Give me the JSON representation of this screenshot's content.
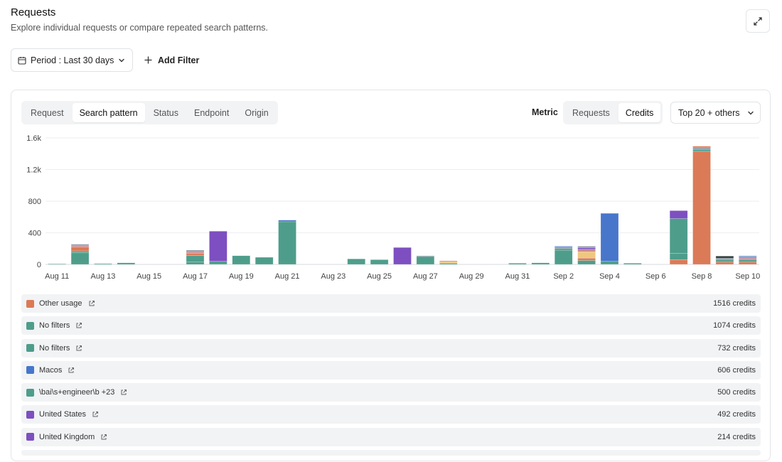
{
  "header": {
    "title": "Requests",
    "subtitle": "Explore individual requests or compare repeated search patterns."
  },
  "filters": {
    "period_label": "Period : Last 30 days",
    "add_filter_label": "Add Filter"
  },
  "tabs": [
    {
      "label": "Request",
      "active": false
    },
    {
      "label": "Search pattern",
      "active": true
    },
    {
      "label": "Status",
      "active": false
    },
    {
      "label": "Endpoint",
      "active": false
    },
    {
      "label": "Origin",
      "active": false
    }
  ],
  "metric": {
    "label": "Metric",
    "options": [
      {
        "label": "Requests",
        "active": false
      },
      {
        "label": "Credits",
        "active": true
      }
    ]
  },
  "top_select": {
    "value": "Top 20 + others"
  },
  "colors": {
    "orange": "#db7a57",
    "teal": "#4e9d8b",
    "blue": "#4776cb",
    "purple": "#7d4fc0",
    "yellow": "#efc77e",
    "gray": "#8d96a2",
    "pink": "#c98a8f",
    "dark": "#2b3a36",
    "lightblue": "#8aa6d6"
  },
  "chart_data": {
    "type": "bar",
    "stacked": true,
    "ylim": [
      0,
      1600
    ],
    "yticks": [
      "0",
      "400",
      "800",
      "1.2k",
      "1.6k"
    ],
    "ytick_values": [
      0,
      400,
      800,
      1200,
      1600
    ],
    "grid": true,
    "categories": [
      "Aug 11",
      "Aug 12",
      "Aug 13",
      "Aug 14",
      "Aug 15",
      "Aug 16",
      "Aug 17",
      "Aug 18",
      "Aug 19",
      "Aug 20",
      "Aug 21",
      "Aug 22",
      "Aug 23",
      "Aug 24",
      "Aug 25",
      "Aug 26",
      "Aug 27",
      "Aug 28",
      "Aug 29",
      "Aug 30",
      "Aug 31",
      "Sep 1",
      "Sep 2",
      "Sep 3",
      "Sep 4",
      "Sep 5",
      "Sep 6",
      "Sep 7",
      "Sep 8",
      "Sep 9",
      "Sep 10"
    ],
    "tick_labels": [
      "Aug 11",
      "Aug 13",
      "Aug 15",
      "Aug 17",
      "Aug 19",
      "Aug 21",
      "Aug 23",
      "Aug 25",
      "Aug 27",
      "Aug 29",
      "Aug 31",
      "Sep 2",
      "Sep 4",
      "Sep 6",
      "Sep 8",
      "Sep 10"
    ],
    "bars": [
      [
        {
          "v": 8,
          "c": "teal"
        }
      ],
      [
        {
          "v": 150,
          "c": "teal"
        },
        {
          "v": 20,
          "c": "teal"
        },
        {
          "v": 50,
          "c": "orange"
        },
        {
          "v": 20,
          "c": "pink"
        },
        {
          "v": 15,
          "c": "gray"
        }
      ],
      [
        {
          "v": 10,
          "c": "teal"
        }
      ],
      [
        {
          "v": 20,
          "c": "teal"
        }
      ],
      [],
      [],
      [
        {
          "v": 30,
          "c": "teal"
        },
        {
          "v": 80,
          "c": "teal"
        },
        {
          "v": 30,
          "c": "orange"
        },
        {
          "v": 20,
          "c": "pink"
        },
        {
          "v": 20,
          "c": "gray"
        }
      ],
      [
        {
          "v": 40,
          "c": "teal"
        },
        {
          "v": 380,
          "c": "purple"
        }
      ],
      [
        {
          "v": 110,
          "c": "teal"
        }
      ],
      [
        {
          "v": 90,
          "c": "teal"
        }
      ],
      [
        {
          "v": 540,
          "c": "teal"
        },
        {
          "v": 20,
          "c": "blue"
        }
      ],
      [],
      [],
      [
        {
          "v": 70,
          "c": "teal"
        }
      ],
      [
        {
          "v": 60,
          "c": "teal"
        }
      ],
      [
        {
          "v": 214,
          "c": "purple"
        }
      ],
      [
        {
          "v": 100,
          "c": "teal"
        },
        {
          "v": 10,
          "c": "gray"
        }
      ],
      [
        {
          "v": 15,
          "c": "teal"
        },
        {
          "v": 20,
          "c": "yellow"
        },
        {
          "v": 10,
          "c": "orange"
        }
      ],
      [],
      [],
      [
        {
          "v": 15,
          "c": "teal"
        }
      ],
      [
        {
          "v": 20,
          "c": "teal"
        }
      ],
      [
        {
          "v": 180,
          "c": "teal"
        },
        {
          "v": 20,
          "c": "teal"
        },
        {
          "v": 20,
          "c": "gray"
        },
        {
          "v": 10,
          "c": "blue"
        }
      ],
      [
        {
          "v": 50,
          "c": "teal"
        },
        {
          "v": 30,
          "c": "orange"
        },
        {
          "v": 80,
          "c": "yellow"
        },
        {
          "v": 30,
          "c": "pink"
        },
        {
          "v": 20,
          "c": "purple"
        },
        {
          "v": 20,
          "c": "gray"
        }
      ],
      [
        {
          "v": 40,
          "c": "teal"
        },
        {
          "v": 606,
          "c": "blue"
        }
      ],
      [
        {
          "v": 15,
          "c": "teal"
        }
      ],
      [],
      [
        {
          "v": 60,
          "c": "orange"
        },
        {
          "v": 80,
          "c": "teal"
        },
        {
          "v": 440,
          "c": "teal"
        },
        {
          "v": 100,
          "c": "purple"
        }
      ],
      [
        {
          "v": 1430,
          "c": "orange"
        },
        {
          "v": 25,
          "c": "teal"
        },
        {
          "v": 20,
          "c": "gray"
        },
        {
          "v": 20,
          "c": "orange"
        }
      ],
      [
        {
          "v": 30,
          "c": "orange"
        },
        {
          "v": 30,
          "c": "teal"
        },
        {
          "v": 20,
          "c": "gray"
        },
        {
          "v": 25,
          "c": "dark"
        }
      ],
      [
        {
          "v": 30,
          "c": "orange"
        },
        {
          "v": 30,
          "c": "teal"
        },
        {
          "v": 20,
          "c": "pink"
        },
        {
          "v": 10,
          "c": "purple"
        },
        {
          "v": 20,
          "c": "lightblue"
        }
      ]
    ]
  },
  "legend": [
    {
      "label": "Other usage",
      "value": "1516 credits",
      "color": "#db7a57"
    },
    {
      "label": "No filters",
      "value": "1074 credits",
      "color": "#4e9d8b"
    },
    {
      "label": "No filters",
      "value": "732 credits",
      "color": "#4e9d8b"
    },
    {
      "label": "Macos",
      "value": "606 credits",
      "color": "#4776cb"
    },
    {
      "label": "\\bai\\s+engineer\\b +23",
      "value": "500 credits",
      "color": "#4e9d8b"
    },
    {
      "label": "United States",
      "value": "492 credits",
      "color": "#7d4fc0"
    },
    {
      "label": "United Kingdom",
      "value": "214 credits",
      "color": "#7d4fc0"
    }
  ]
}
